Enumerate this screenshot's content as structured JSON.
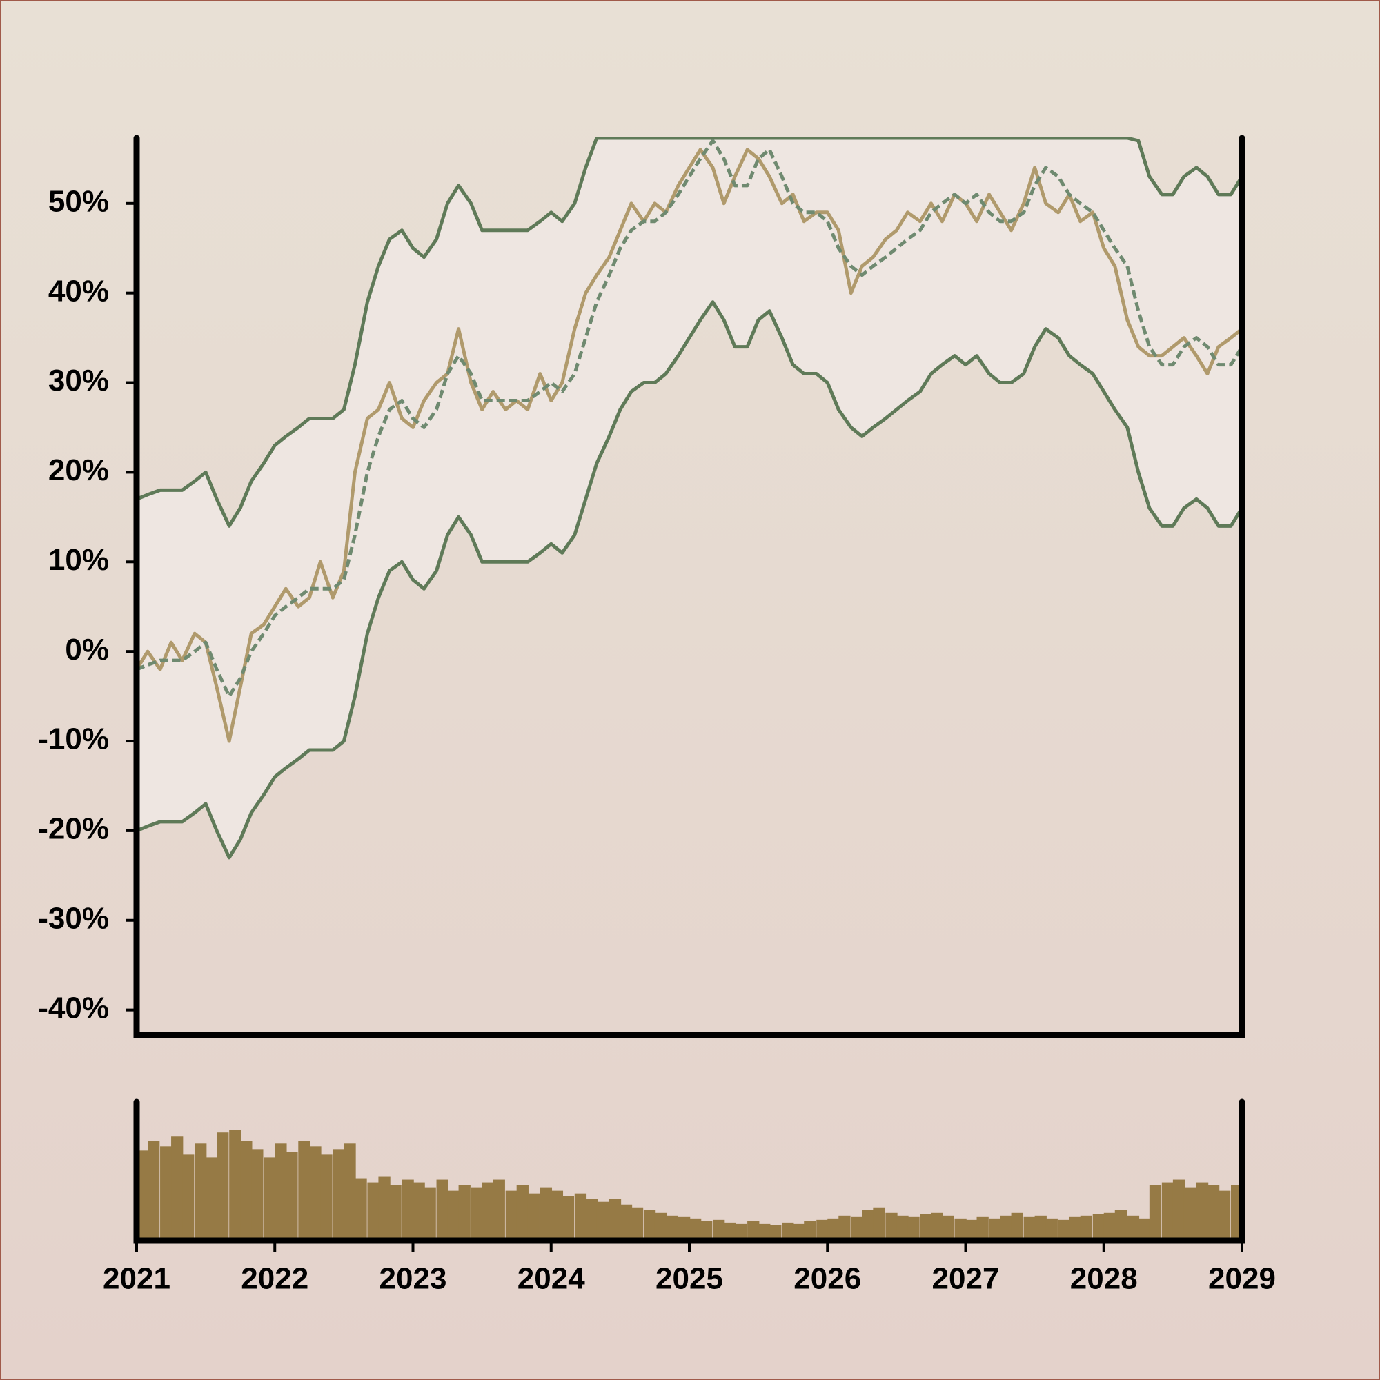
{
  "chart_data": [
    {
      "type": "line",
      "x": [
        2021.0,
        2021.08,
        2021.17,
        2021.25,
        2021.33,
        2021.42,
        2021.5,
        2021.58,
        2021.67,
        2021.75,
        2021.83,
        2021.92,
        2022.0,
        2022.08,
        2022.17,
        2022.25,
        2022.33,
        2022.42,
        2022.5,
        2022.58,
        2022.67,
        2022.75,
        2022.83,
        2022.92,
        2023.0,
        2023.08,
        2023.17,
        2023.25,
        2023.33,
        2023.42,
        2023.5,
        2023.58,
        2023.67,
        2023.75,
        2023.83,
        2023.92,
        2024.0,
        2024.08,
        2024.17,
        2024.25,
        2024.33,
        2024.42,
        2024.5,
        2024.58,
        2024.67,
        2024.75,
        2024.83,
        2024.92,
        2025.0,
        2025.08,
        2025.17,
        2025.25,
        2025.33,
        2025.42,
        2025.5,
        2025.58,
        2025.67,
        2025.75,
        2025.83,
        2025.92,
        2026.0,
        2026.08,
        2026.17,
        2026.25,
        2026.33,
        2026.42,
        2026.5,
        2026.58,
        2026.67,
        2026.75,
        2026.83,
        2026.92,
        2027.0,
        2027.08,
        2027.17,
        2027.25,
        2027.33,
        2027.42,
        2027.5,
        2027.58,
        2027.67,
        2027.75,
        2027.83,
        2027.92,
        2028.0,
        2028.08,
        2028.17,
        2028.25,
        2028.33,
        2028.42,
        2028.5,
        2028.58,
        2028.67,
        2028.75,
        2028.83,
        2028.92,
        2029.0
      ],
      "xlim": [
        2021,
        2029
      ],
      "ylim": [
        -42.8,
        57.3
      ],
      "yticks": [
        {
          "value": -40,
          "label": "-40%"
        },
        {
          "value": -30,
          "label": "-30%"
        },
        {
          "value": -20,
          "label": "-20%"
        },
        {
          "value": -10,
          "label": "-10%"
        },
        {
          "value": 0,
          "label": "0%"
        },
        {
          "value": 10,
          "label": "10%"
        },
        {
          "value": 20,
          "label": "20%"
        },
        {
          "value": 30,
          "label": "30%"
        },
        {
          "value": 40,
          "label": "40%"
        },
        {
          "value": 50,
          "label": "50%"
        }
      ],
      "band_fill": "#eee6e1",
      "series": [
        {
          "color": "#5f7a58",
          "band": true,
          "values": [
            17,
            17.5,
            18,
            18,
            18,
            19,
            20,
            17,
            14,
            16,
            19,
            21,
            23,
            24,
            25,
            26,
            26,
            26,
            27,
            32,
            39,
            43,
            46,
            47,
            45,
            44,
            46,
            50,
            52,
            50,
            47,
            47,
            47,
            47,
            47,
            48,
            49,
            48,
            50,
            54,
            57.3,
            57.3,
            57.3,
            57.3,
            57.3,
            57.3,
            57.3,
            57.3,
            57.3,
            57.3,
            57.3,
            57.3,
            57.3,
            57.3,
            57.3,
            57.3,
            57.3,
            57.3,
            57.3,
            57.3,
            57.3,
            57.3,
            57.3,
            57.3,
            57.3,
            57.3,
            57.3,
            57.3,
            57.3,
            57.3,
            57.3,
            57.3,
            57.3,
            57.3,
            57.3,
            57.3,
            57.3,
            57.3,
            57.3,
            57.3,
            57.3,
            57.3,
            57.3,
            57.3,
            57.3,
            57.3,
            57.3,
            57,
            53,
            51,
            51,
            53,
            54,
            53,
            51,
            51,
            53
          ]
        },
        {
          "color": "#5f7a58",
          "band": true,
          "values": [
            -20,
            -19.5,
            -19,
            -19,
            -19,
            -18,
            -17,
            -20,
            -23,
            -21,
            -18,
            -16,
            -14,
            -13,
            -12,
            -11,
            -11,
            -11,
            -10,
            -5,
            2,
            6,
            9,
            10,
            8,
            7,
            9,
            13,
            15,
            13,
            10,
            10,
            10,
            10,
            10,
            11,
            12,
            11,
            13,
            17,
            21,
            24,
            27,
            29,
            30,
            30,
            31,
            33,
            35,
            37,
            39,
            37,
            34,
            34,
            37,
            38,
            35,
            32,
            31,
            31,
            30,
            27,
            25,
            24,
            25,
            26,
            27,
            28,
            29,
            31,
            32,
            33,
            32,
            33,
            31,
            30,
            30,
            31,
            34,
            36,
            35,
            33,
            32,
            31,
            29,
            27,
            25,
            20,
            16,
            14,
            14,
            16,
            17,
            16,
            14,
            14,
            16
          ]
        },
        {
          "color": "#b09a6c",
          "values": [
            -2,
            0,
            -2,
            1,
            -1,
            2,
            1,
            -4,
            -10,
            -4,
            2,
            3,
            5,
            7,
            5,
            6,
            10,
            6,
            9,
            20,
            26,
            27,
            30,
            26,
            25,
            28,
            30,
            31,
            36,
            30,
            27,
            29,
            27,
            28,
            27,
            31,
            28,
            30,
            36,
            40,
            42,
            44,
            47,
            50,
            48,
            50,
            49,
            52,
            54,
            56,
            54,
            50,
            53,
            56,
            55,
            53,
            50,
            51,
            48,
            49,
            49,
            47,
            40,
            43,
            44,
            46,
            47,
            49,
            48,
            50,
            48,
            51,
            50,
            48,
            51,
            49,
            47,
            50,
            54,
            50,
            49,
            51,
            48,
            49,
            45,
            43,
            37,
            34,
            33,
            33,
            34,
            35,
            33,
            31,
            34,
            35,
            36
          ]
        },
        {
          "color": "#6f8a70",
          "dashed": true,
          "values": [
            -2,
            -1.5,
            -1,
            -1,
            -1,
            0,
            1,
            -2,
            -5,
            -3,
            0,
            2,
            4,
            5,
            6,
            7,
            7,
            7,
            8,
            13,
            20,
            24,
            27,
            28,
            26,
            25,
            27,
            31,
            33,
            31,
            28,
            28,
            28,
            28,
            28,
            29,
            30,
            29,
            31,
            35,
            39,
            42,
            45,
            47,
            48,
            48,
            49,
            51,
            53,
            55,
            57,
            55,
            52,
            52,
            55,
            56,
            53,
            50,
            49,
            49,
            48,
            45,
            43,
            42,
            43,
            44,
            45,
            46,
            47,
            49,
            50,
            51,
            50,
            51,
            49,
            48,
            48,
            49,
            52,
            54,
            53,
            51,
            50,
            49,
            47,
            45,
            43,
            38,
            34,
            32,
            32,
            34,
            35,
            34,
            32,
            32,
            34
          ]
        }
      ]
    },
    {
      "type": "bar",
      "x": [
        2021.0,
        2021.08,
        2021.17,
        2021.25,
        2021.33,
        2021.42,
        2021.5,
        2021.58,
        2021.67,
        2021.75,
        2021.83,
        2021.92,
        2022.0,
        2022.08,
        2022.17,
        2022.25,
        2022.33,
        2022.42,
        2022.5,
        2022.58,
        2022.67,
        2022.75,
        2022.83,
        2022.92,
        2023.0,
        2023.08,
        2023.17,
        2023.25,
        2023.33,
        2023.42,
        2023.5,
        2023.58,
        2023.67,
        2023.75,
        2023.83,
        2023.92,
        2024.0,
        2024.08,
        2024.17,
        2024.25,
        2024.33,
        2024.42,
        2024.5,
        2024.58,
        2024.67,
        2024.75,
        2024.83,
        2024.92,
        2025.0,
        2025.08,
        2025.17,
        2025.25,
        2025.33,
        2025.42,
        2025.5,
        2025.58,
        2025.67,
        2025.75,
        2025.83,
        2025.92,
        2026.0,
        2026.08,
        2026.17,
        2026.25,
        2026.33,
        2026.42,
        2026.5,
        2026.58,
        2026.67,
        2026.75,
        2026.83,
        2026.92,
        2027.0,
        2027.08,
        2027.17,
        2027.25,
        2027.33,
        2027.42,
        2027.5,
        2027.58,
        2027.67,
        2027.75,
        2027.83,
        2027.92,
        2028.0,
        2028.08,
        2028.17,
        2028.25,
        2028.33,
        2028.42,
        2028.5,
        2028.58,
        2028.67,
        2028.75,
        2028.83,
        2028.92,
        2029.0
      ],
      "values": [
        65,
        72,
        68,
        75,
        62,
        70,
        60,
        78,
        80,
        72,
        66,
        60,
        70,
        64,
        72,
        68,
        62,
        66,
        70,
        45,
        42,
        46,
        40,
        44,
        42,
        38,
        44,
        36,
        40,
        38,
        42,
        44,
        36,
        40,
        34,
        38,
        36,
        32,
        34,
        30,
        28,
        30,
        26,
        24,
        22,
        20,
        18,
        17,
        16,
        14,
        15,
        13,
        12,
        14,
        12,
        11,
        13,
        12,
        14,
        15,
        16,
        18,
        17,
        22,
        24,
        20,
        18,
        17,
        19,
        20,
        18,
        16,
        15,
        17,
        16,
        18,
        20,
        17,
        18,
        16,
        15,
        17,
        18,
        19,
        20,
        22,
        18,
        16,
        40,
        42,
        44,
        38,
        42,
        40,
        36,
        40,
        30
      ],
      "color": "#967a45",
      "xlim": [
        2021,
        2029
      ],
      "ylim": [
        0,
        100
      ],
      "xticks": [
        2021,
        2022,
        2023,
        2024,
        2025,
        2026,
        2027,
        2028,
        2029
      ]
    }
  ]
}
